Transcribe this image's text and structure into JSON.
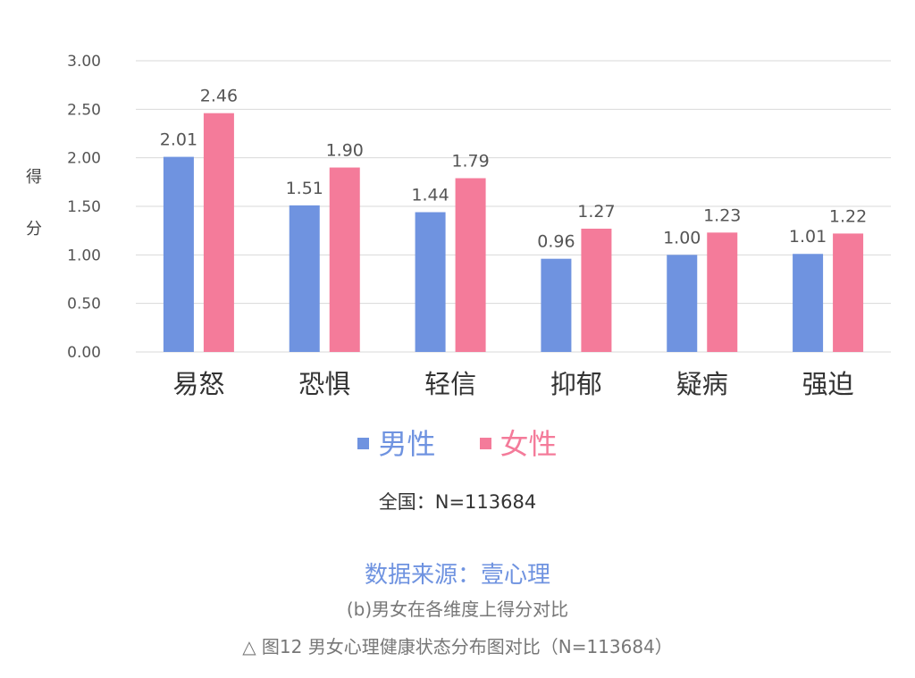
{
  "chart_data": {
    "type": "bar",
    "categories": [
      "易怒",
      "恐惧",
      "轻信",
      "抑郁",
      "疑病",
      "强迫"
    ],
    "series": [
      {
        "name": "男性",
        "values": [
          2.01,
          1.51,
          1.44,
          0.96,
          1.0,
          1.01
        ],
        "labels": [
          "2.01",
          "1.51",
          "1.44",
          "0.96",
          "1.00",
          "1.01"
        ],
        "color": "#6f93e0"
      },
      {
        "name": "女性",
        "values": [
          2.46,
          1.9,
          1.79,
          1.27,
          1.23,
          1.22
        ],
        "labels": [
          "2.46",
          "1.90",
          "1.79",
          "1.27",
          "1.23",
          "1.22"
        ],
        "color": "#f47b9a"
      }
    ],
    "ylabel": "得分",
    "ylim": [
      0,
      3
    ],
    "yticks": [
      "0.00",
      "0.50",
      "1.00",
      "1.50",
      "2.00",
      "2.50",
      "3.00"
    ],
    "grid": true,
    "legend_position": "bottom"
  },
  "legend": {
    "male": "男性",
    "female": "女性"
  },
  "captions": {
    "sample": "全国：N=113684",
    "source": "数据来源：壹心理",
    "subtitle": "(b)男女在各维度上得分对比",
    "figure": "△ 图12 男女心理健康状态分布图对比（N=113684）"
  },
  "colors": {
    "male": "#6f93e0",
    "female": "#f47b9a",
    "source_text": "#6f93e0",
    "grid": "#d9d9d9"
  }
}
